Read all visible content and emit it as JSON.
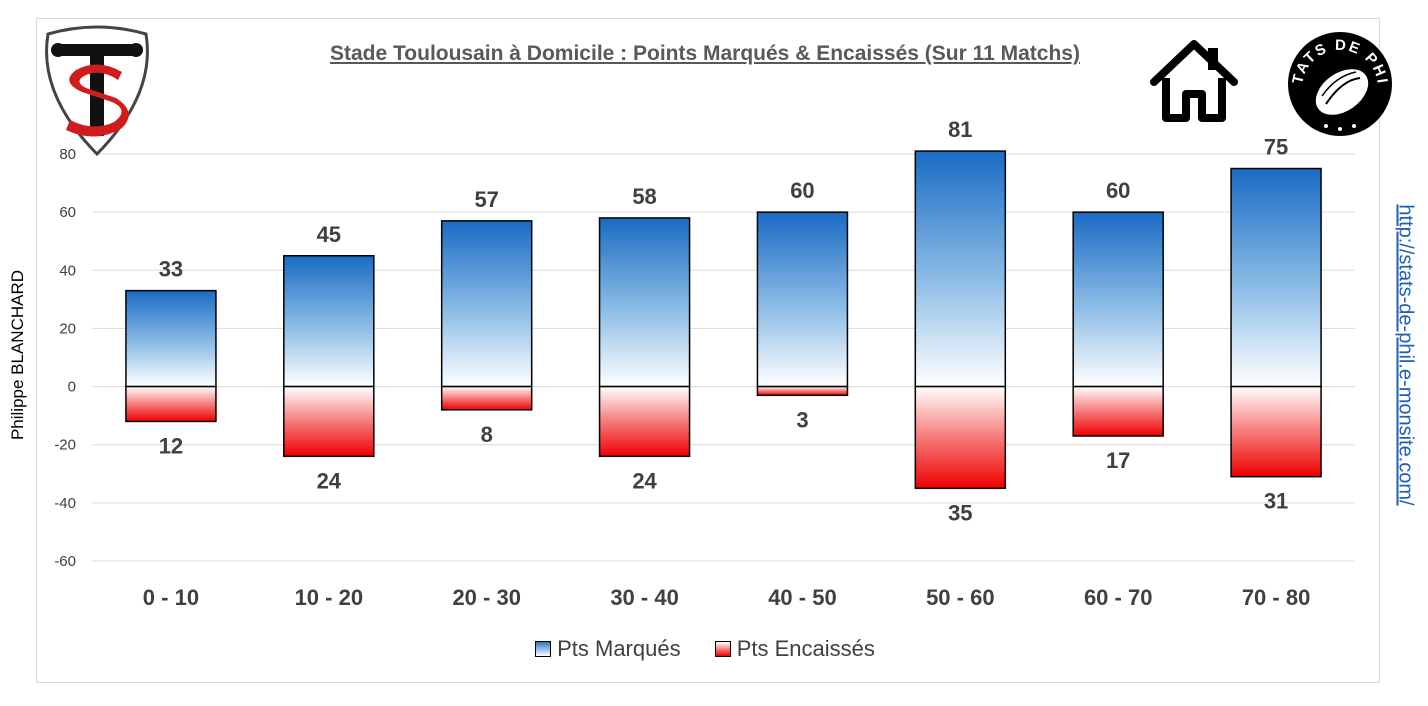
{
  "title": "Stade Toulousain à Domicile : Points Marqués & Encaissés (Sur 11 Matchs)",
  "author": "Philippe BLANCHARD",
  "website": "http://stats-de-phil.e-monsite.com/",
  "logo_right_text": "STATS DE PHIL",
  "icons": {
    "left_logo": "stade-toulousain-logo",
    "home": "house-icon",
    "right_logo": "stats-de-phil-rugby-ball-logo"
  },
  "colors": {
    "scored_top": "#1a6bc4",
    "conceded_bottom": "#ee0000",
    "axis_text": "#404040",
    "grid": "#d9d9d9"
  },
  "chart_data": {
    "type": "bar",
    "title": "Stade Toulousain à Domicile : Points Marqués & Encaissés (Sur 11 Matchs)",
    "xlabel": "",
    "ylabel": "Philippe BLANCHARD",
    "ylim": [
      -60,
      80
    ],
    "yticks": [
      80,
      60,
      40,
      20,
      0,
      -20,
      -40,
      -60
    ],
    "grid": true,
    "legend_position": "bottom",
    "categories": [
      "0 - 10",
      "10 - 20",
      "20 - 30",
      "30 - 40",
      "40 - 50",
      "50 - 60",
      "60 - 70",
      "70 - 80"
    ],
    "series": [
      {
        "name": "Pts Marqués",
        "values": [
          33,
          45,
          57,
          58,
          60,
          81,
          60,
          75
        ],
        "labels": [
          "33",
          "45",
          "57",
          "58",
          "60",
          "81",
          "60",
          "75"
        ]
      },
      {
        "name": "Pts Encaissés",
        "values": [
          -12,
          -24,
          -8,
          -24,
          -3,
          -35,
          -17,
          -31
        ],
        "labels": [
          "12",
          "24",
          "8",
          "24",
          "3",
          "35",
          "17",
          "31"
        ]
      }
    ]
  }
}
